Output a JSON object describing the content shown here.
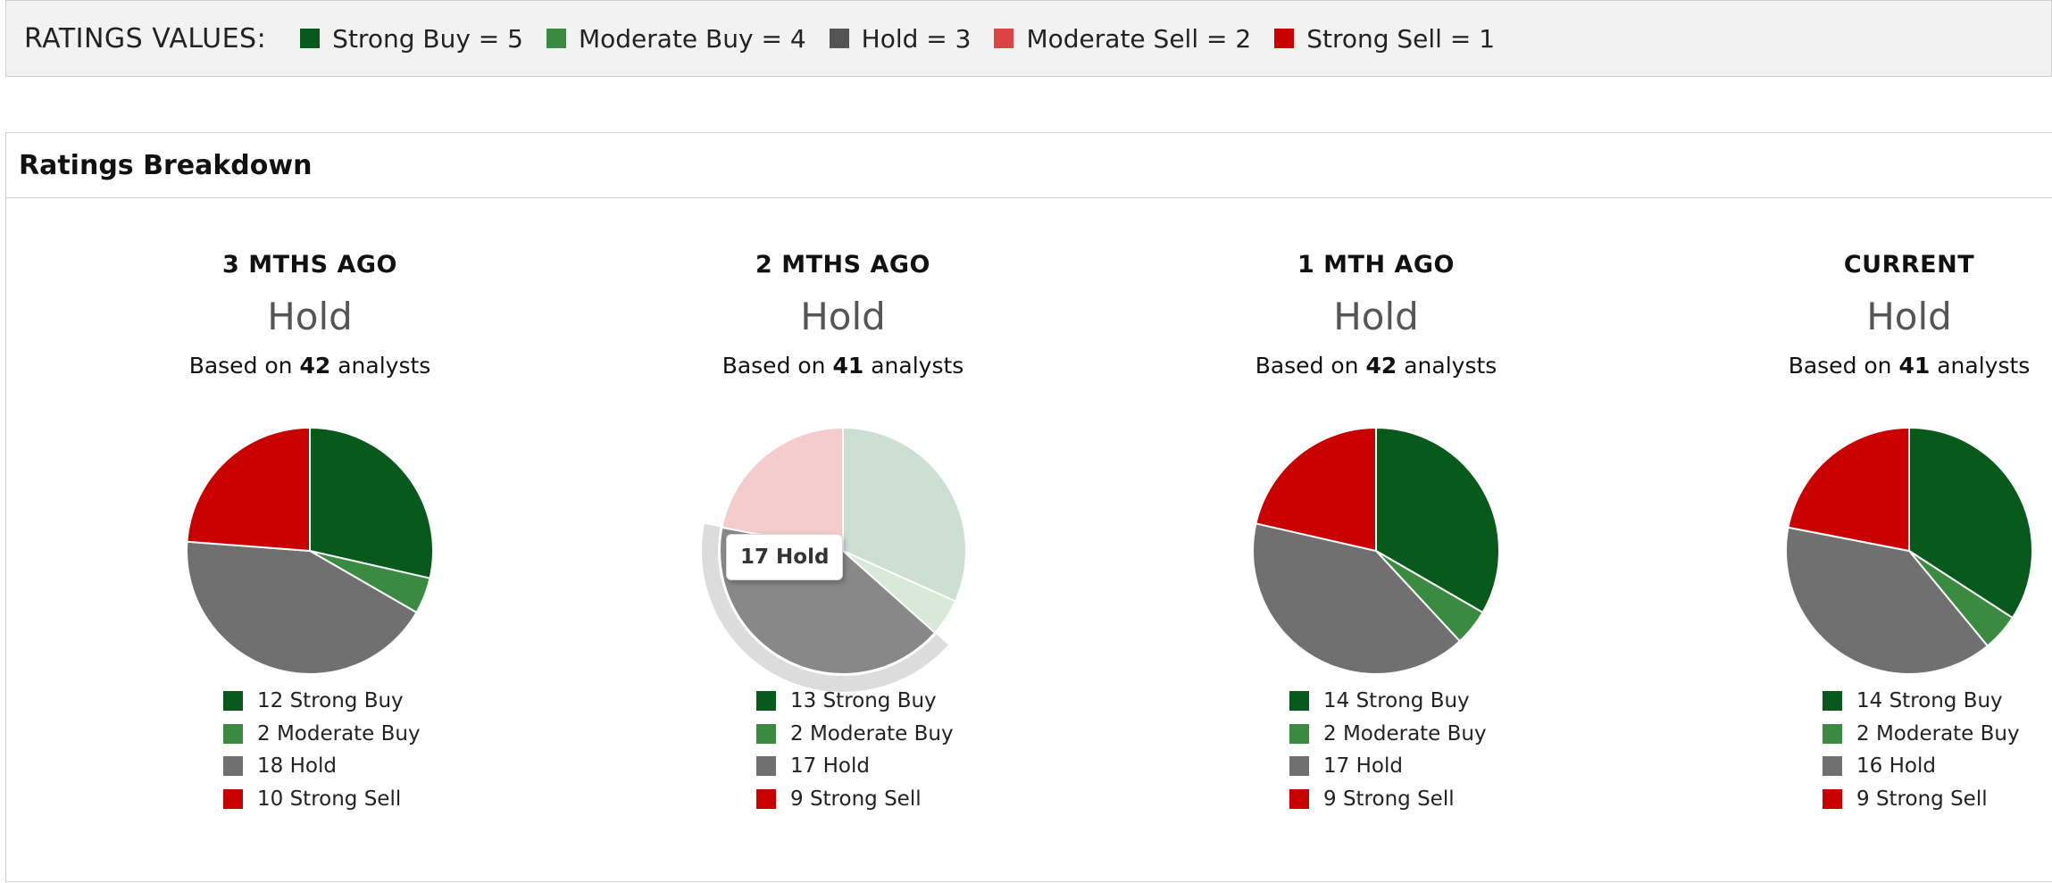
{
  "ratings_legend": {
    "title": "RATINGS VALUES:",
    "items": [
      {
        "label": "Strong Buy = 5",
        "color": "#075a1c"
      },
      {
        "label": "Moderate Buy = 4",
        "color": "#3a8b41"
      },
      {
        "label": "Hold = 3",
        "color": "#555555"
      },
      {
        "label": "Moderate Sell = 2",
        "color": "#dc4444"
      },
      {
        "label": "Strong Sell = 1",
        "color": "#c80000"
      }
    ]
  },
  "panel": {
    "title": "Ratings Breakdown"
  },
  "chart_data": [
    {
      "type": "pie",
      "title": "3 MTHS AGO",
      "consensus": "Hold",
      "based_on_prefix": "Based on",
      "analysts": "42",
      "based_on_suffix": "analysts",
      "slices": [
        {
          "label": "Strong Buy",
          "value": 12,
          "color": "#075a1c"
        },
        {
          "label": "Moderate Buy",
          "value": 2,
          "color": "#3a8b41"
        },
        {
          "label": "Hold",
          "value": 18,
          "color": "#707070"
        },
        {
          "label": "Strong Sell",
          "value": 10,
          "color": "#c80000"
        }
      ]
    },
    {
      "type": "pie",
      "title": "2 MTHS AGO",
      "consensus": "Hold",
      "based_on_prefix": "Based on",
      "analysts": "41",
      "based_on_suffix": "analysts",
      "hovered": "Hold",
      "tooltip": "17 Hold",
      "slices": [
        {
          "label": "Strong Buy",
          "value": 13,
          "color": "#075a1c"
        },
        {
          "label": "Moderate Buy",
          "value": 2,
          "color": "#3a8b41"
        },
        {
          "label": "Hold",
          "value": 17,
          "color": "#707070"
        },
        {
          "label": "Strong Sell",
          "value": 9,
          "color": "#c80000"
        }
      ]
    },
    {
      "type": "pie",
      "title": "1 MTH AGO",
      "consensus": "Hold",
      "based_on_prefix": "Based on",
      "analysts": "42",
      "based_on_suffix": "analysts",
      "slices": [
        {
          "label": "Strong Buy",
          "value": 14,
          "color": "#075a1c"
        },
        {
          "label": "Moderate Buy",
          "value": 2,
          "color": "#3a8b41"
        },
        {
          "label": "Hold",
          "value": 17,
          "color": "#707070"
        },
        {
          "label": "Strong Sell",
          "value": 9,
          "color": "#c80000"
        }
      ]
    },
    {
      "type": "pie",
      "title": "CURRENT",
      "consensus": "Hold",
      "based_on_prefix": "Based on",
      "analysts": "41",
      "based_on_suffix": "analysts",
      "slices": [
        {
          "label": "Strong Buy",
          "value": 14,
          "color": "#075a1c"
        },
        {
          "label": "Moderate Buy",
          "value": 2,
          "color": "#3a8b41"
        },
        {
          "label": "Hold",
          "value": 16,
          "color": "#707070"
        },
        {
          "label": "Strong Sell",
          "value": 9,
          "color": "#c80000"
        }
      ]
    }
  ]
}
